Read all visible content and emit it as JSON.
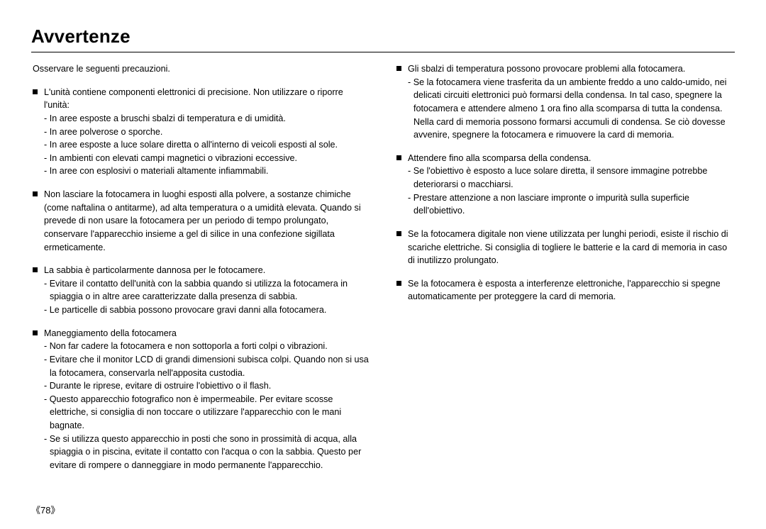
{
  "heading": "Avvertenze",
  "intro": "Osservare le seguenti precauzioni.",
  "page_number": "《78》",
  "left_items": [
    {
      "lead": "L'unità contiene componenti elettronici di precisione. Non utilizzare o riporre l'unità:",
      "subs": [
        "In aree esposte a bruschi sbalzi di temperatura e di umidità.",
        "In aree polverose o sporche.",
        "In aree esposte a luce solare diretta o all'interno di veicoli esposti al sole.",
        "In ambienti con elevati campi magnetici o vibrazioni eccessive.",
        "In aree con esplosivi o materiali altamente infiammabili."
      ]
    },
    {
      "lead": "Non lasciare la fotocamera in luoghi esposti alla polvere, a sostanze chimiche (come naftalina o antitarme), ad alta temperatura o a umidità elevata. Quando si prevede di non usare la fotocamera per un periodo di tempo prolungato, conservare l'apparecchio insieme a gel di silice in una confezione sigillata ermeticamente.",
      "subs": []
    },
    {
      "lead": "La sabbia è particolarmente dannosa per le fotocamere.",
      "subs": [
        "Evitare il contatto dell'unità con la sabbia quando si utilizza la fotocamera in spiaggia o in altre aree caratterizzate dalla presenza di sabbia.",
        "Le particelle di sabbia possono provocare gravi danni alla fotocamera."
      ]
    },
    {
      "lead": "Maneggiamento della fotocamera",
      "subs": [
        "Non far cadere la fotocamera e non sottoporla a forti colpi o vibrazioni.",
        "Evitare che il monitor LCD di grandi dimensioni subisca colpi. Quando non si usa la fotocamera, conservarla nell'apposita custodia.",
        "Durante le riprese, evitare di ostruire l'obiettivo o il flash.",
        "Questo apparecchio fotografico non è impermeabile. Per evitare scosse elettriche, si consiglia di non toccare o utilizzare l'apparecchio con le mani bagnate.",
        "Se si utilizza questo apparecchio in posti che sono in prossimità di acqua, alla spiaggia o in piscina, evitate il contatto con l'acqua o con la sabbia. Questo per evitare di rompere o danneggiare in modo permanente l'apparecchio."
      ]
    }
  ],
  "right_items": [
    {
      "lead": "Gli sbalzi di temperatura possono provocare problemi alla fotocamera.",
      "subs": [
        "Se la fotocamera viene trasferita da un ambiente freddo a uno caldo-umido, nei delicati circuiti elettronici può formarsi della condensa. In tal caso, spegnere la fotocamera e attendere almeno 1 ora fino alla scomparsa di tutta la condensa. Nella card di memoria possono formarsi accumuli di condensa. Se ciò dovesse avvenire, spegnere la fotocamera e rimuovere la card di memoria."
      ]
    },
    {
      "lead": "Attendere fino alla scomparsa della condensa.",
      "subs": [
        "Se l'obiettivo è esposto a luce solare diretta, il sensore immagine potrebbe deteriorarsi o macchiarsi.",
        "Prestare attenzione a non lasciare impronte o impurità sulla superficie dell'obiettivo."
      ]
    },
    {
      "lead": "Se la fotocamera digitale non viene utilizzata per lunghi periodi, esiste il rischio di scariche elettriche. Si consiglia di togliere le batterie e la card di memoria in caso di inutilizzo prolungato.",
      "subs": []
    },
    {
      "lead": "Se la fotocamera è esposta a interferenze elettroniche, l'apparecchio si spegne automaticamente per proteggere la card di memoria.",
      "subs": []
    }
  ]
}
